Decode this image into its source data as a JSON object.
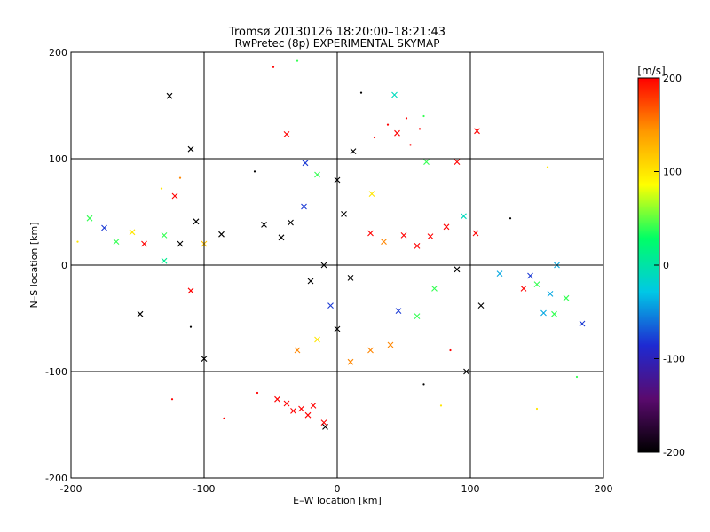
{
  "chart_data": {
    "type": "scatter",
    "title": "Tromsø 20130126 18:20:00–18:21:43",
    "subtitle": "RwPretec (8p) EXPERIMENTAL SKYMAP",
    "xlabel": "E–W location [km]",
    "ylabel": "N–S location [km]",
    "xlim": [
      -200,
      200
    ],
    "ylim": [
      -200,
      200
    ],
    "xticks": [
      "-200",
      "-100",
      "0",
      "100",
      "200"
    ],
    "yticks": [
      "-200",
      "-100",
      "0",
      "100",
      "200"
    ],
    "grid": true,
    "colorbar": {
      "label": "[m/s]",
      "range": [
        -200,
        200
      ],
      "ticks": [
        "200",
        "100",
        "0",
        "-100",
        "-200"
      ],
      "colormap": [
        "#000000",
        "#5a0a6e",
        "#1e2ad2",
        "#00c8e6",
        "#00ff66",
        "#ffff00",
        "#ff9900",
        "#ff0000"
      ]
    },
    "series": [
      {
        "name": "cross markers (large)",
        "marker": "x",
        "points": [
          {
            "x": -126,
            "y": 159,
            "v": -200
          },
          {
            "x": -110,
            "y": 109,
            "v": -200
          },
          {
            "x": -38,
            "y": 123,
            "v": 200
          },
          {
            "x": 12,
            "y": 107,
            "v": -200
          },
          {
            "x": 45,
            "y": 124,
            "v": 200
          },
          {
            "x": 43,
            "y": 160,
            "v": -10
          },
          {
            "x": 105,
            "y": 126,
            "v": 200
          },
          {
            "x": 90,
            "y": 97,
            "v": 200
          },
          {
            "x": 67,
            "y": 97,
            "v": 40
          },
          {
            "x": -24,
            "y": 96,
            "v": -80
          },
          {
            "x": -186,
            "y": 44,
            "v": 40
          },
          {
            "x": -175,
            "y": 35,
            "v": -80
          },
          {
            "x": -166,
            "y": 22,
            "v": 40
          },
          {
            "x": -154,
            "y": 31,
            "v": 100
          },
          {
            "x": -145,
            "y": 20,
            "v": 200
          },
          {
            "x": -130,
            "y": 28,
            "v": 40
          },
          {
            "x": -118,
            "y": 20,
            "v": -200
          },
          {
            "x": -122,
            "y": 65,
            "v": 200
          },
          {
            "x": -106,
            "y": 41,
            "v": -200
          },
          {
            "x": -100,
            "y": 20,
            "v": 120
          },
          {
            "x": -130,
            "y": 4,
            "v": 10
          },
          {
            "x": -110,
            "y": -24,
            "v": 200
          },
          {
            "x": -148,
            "y": -46,
            "v": -200
          },
          {
            "x": -100,
            "y": -88,
            "v": -200
          },
          {
            "x": -87,
            "y": 29,
            "v": -200
          },
          {
            "x": -55,
            "y": 38,
            "v": -200
          },
          {
            "x": -42,
            "y": 26,
            "v": -200
          },
          {
            "x": -35,
            "y": 40,
            "v": -200
          },
          {
            "x": -25,
            "y": 55,
            "v": -80
          },
          {
            "x": 5,
            "y": 48,
            "v": -200
          },
          {
            "x": 25,
            "y": 30,
            "v": 200
          },
          {
            "x": 35,
            "y": 22,
            "v": 150
          },
          {
            "x": 50,
            "y": 28,
            "v": 200
          },
          {
            "x": 60,
            "y": 18,
            "v": 200
          },
          {
            "x": 70,
            "y": 27,
            "v": 200
          },
          {
            "x": 82,
            "y": 36,
            "v": 200
          },
          {
            "x": 104,
            "y": 30,
            "v": 200
          },
          {
            "x": 95,
            "y": 46,
            "v": -10
          },
          {
            "x": 145,
            "y": -10,
            "v": -80
          },
          {
            "x": 150,
            "y": -18,
            "v": 40
          },
          {
            "x": 160,
            "y": -27,
            "v": -40
          },
          {
            "x": 172,
            "y": -31,
            "v": 40
          },
          {
            "x": 165,
            "y": 0,
            "v": -40
          },
          {
            "x": 140,
            "y": -22,
            "v": 200
          },
          {
            "x": 155,
            "y": -45,
            "v": -40
          },
          {
            "x": 163,
            "y": -46,
            "v": 40
          },
          {
            "x": 184,
            "y": -55,
            "v": -80
          },
          {
            "x": 122,
            "y": -8,
            "v": -40
          },
          {
            "x": 108,
            "y": -38,
            "v": -200
          },
          {
            "x": 97,
            "y": -100,
            "v": -200
          },
          {
            "x": 90,
            "y": -4,
            "v": -200
          },
          {
            "x": 73,
            "y": -22,
            "v": 40
          },
          {
            "x": 60,
            "y": -48,
            "v": 40
          },
          {
            "x": 46,
            "y": -43,
            "v": -80
          },
          {
            "x": 40,
            "y": -75,
            "v": 150
          },
          {
            "x": 25,
            "y": -80,
            "v": 150
          },
          {
            "x": 10,
            "y": -91,
            "v": 150
          },
          {
            "x": 0,
            "y": -60,
            "v": -200
          },
          {
            "x": -15,
            "y": -70,
            "v": 100
          },
          {
            "x": -30,
            "y": -80,
            "v": 150
          },
          {
            "x": -38,
            "y": -130,
            "v": 200
          },
          {
            "x": -33,
            "y": -137,
            "v": 200
          },
          {
            "x": -27,
            "y": -135,
            "v": 200
          },
          {
            "x": -22,
            "y": -141,
            "v": 200
          },
          {
            "x": -18,
            "y": -132,
            "v": 200
          },
          {
            "x": -10,
            "y": -148,
            "v": 200
          },
          {
            "x": -45,
            "y": -126,
            "v": 200
          },
          {
            "x": -9,
            "y": -152,
            "v": -200
          },
          {
            "x": -5,
            "y": -38,
            "v": -80
          },
          {
            "x": 10,
            "y": -12,
            "v": -200
          },
          {
            "x": -20,
            "y": -15,
            "v": -200
          },
          {
            "x": -10,
            "y": 0,
            "v": -200
          },
          {
            "x": 0,
            "y": 80,
            "v": -200
          },
          {
            "x": 26,
            "y": 67,
            "v": 100
          },
          {
            "x": -15,
            "y": 85,
            "v": 40
          }
        ]
      },
      {
        "name": "dot markers (small)",
        "marker": "dot",
        "points": [
          {
            "x": -30,
            "y": 192,
            "v": 40
          },
          {
            "x": -48,
            "y": 186,
            "v": 200
          },
          {
            "x": 18,
            "y": 162,
            "v": -200
          },
          {
            "x": 65,
            "y": 140,
            "v": 40
          },
          {
            "x": 28,
            "y": 120,
            "v": 200
          },
          {
            "x": 52,
            "y": 138,
            "v": 200
          },
          {
            "x": 38,
            "y": 132,
            "v": 200
          },
          {
            "x": 55,
            "y": 113,
            "v": 200
          },
          {
            "x": 62,
            "y": 128,
            "v": 200
          },
          {
            "x": -62,
            "y": 88,
            "v": -200
          },
          {
            "x": -132,
            "y": 72,
            "v": 100
          },
          {
            "x": -118,
            "y": 82,
            "v": 150
          },
          {
            "x": -195,
            "y": 22,
            "v": 100
          },
          {
            "x": 130,
            "y": 44,
            "v": -200
          },
          {
            "x": 158,
            "y": 92,
            "v": 100
          },
          {
            "x": -124,
            "y": -126,
            "v": 200
          },
          {
            "x": -60,
            "y": -120,
            "v": 200
          },
          {
            "x": -85,
            "y": -144,
            "v": 200
          },
          {
            "x": 150,
            "y": -135,
            "v": 100
          },
          {
            "x": 180,
            "y": -105,
            "v": 40
          },
          {
            "x": -110,
            "y": -58,
            "v": -200
          },
          {
            "x": 65,
            "y": -112,
            "v": -200
          },
          {
            "x": 78,
            "y": -132,
            "v": 100
          },
          {
            "x": 85,
            "y": -80,
            "v": 200
          }
        ]
      }
    ]
  }
}
